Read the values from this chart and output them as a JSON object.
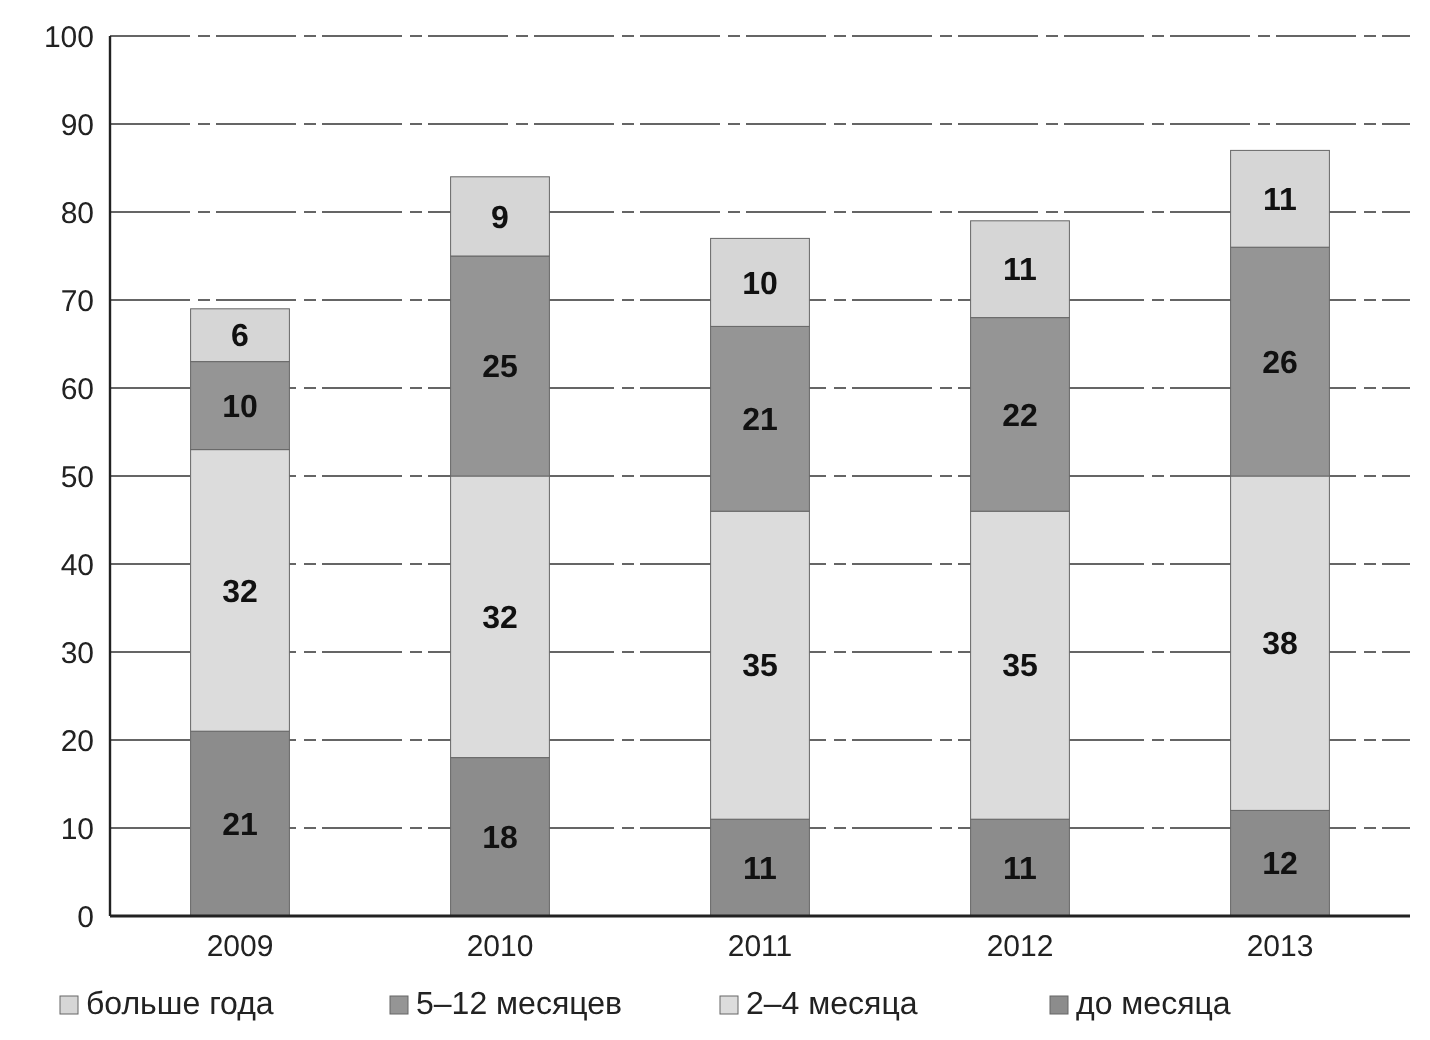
{
  "chart_data": {
    "type": "bar",
    "stacked": true,
    "categories": [
      "2009",
      "2010",
      "2011",
      "2012",
      "2013"
    ],
    "series": [
      {
        "name": "до месяца",
        "color": "#8c8c8c",
        "values": [
          21,
          18,
          11,
          11,
          12
        ]
      },
      {
        "name": "2–4 месяца",
        "color": "#dcdcdc",
        "values": [
          32,
          32,
          35,
          35,
          38
        ]
      },
      {
        "name": "5–12 месяцев",
        "color": "#959595",
        "values": [
          10,
          25,
          21,
          22,
          26
        ]
      },
      {
        "name": "больше года",
        "color": "#d6d6d6",
        "values": [
          6,
          9,
          10,
          11,
          11
        ]
      }
    ],
    "data_labels": true,
    "ylim": [
      0,
      100
    ],
    "yticks": [
      0,
      10,
      20,
      30,
      40,
      50,
      60,
      70,
      80,
      90,
      100
    ],
    "grid": "y",
    "legend": "bottom"
  }
}
